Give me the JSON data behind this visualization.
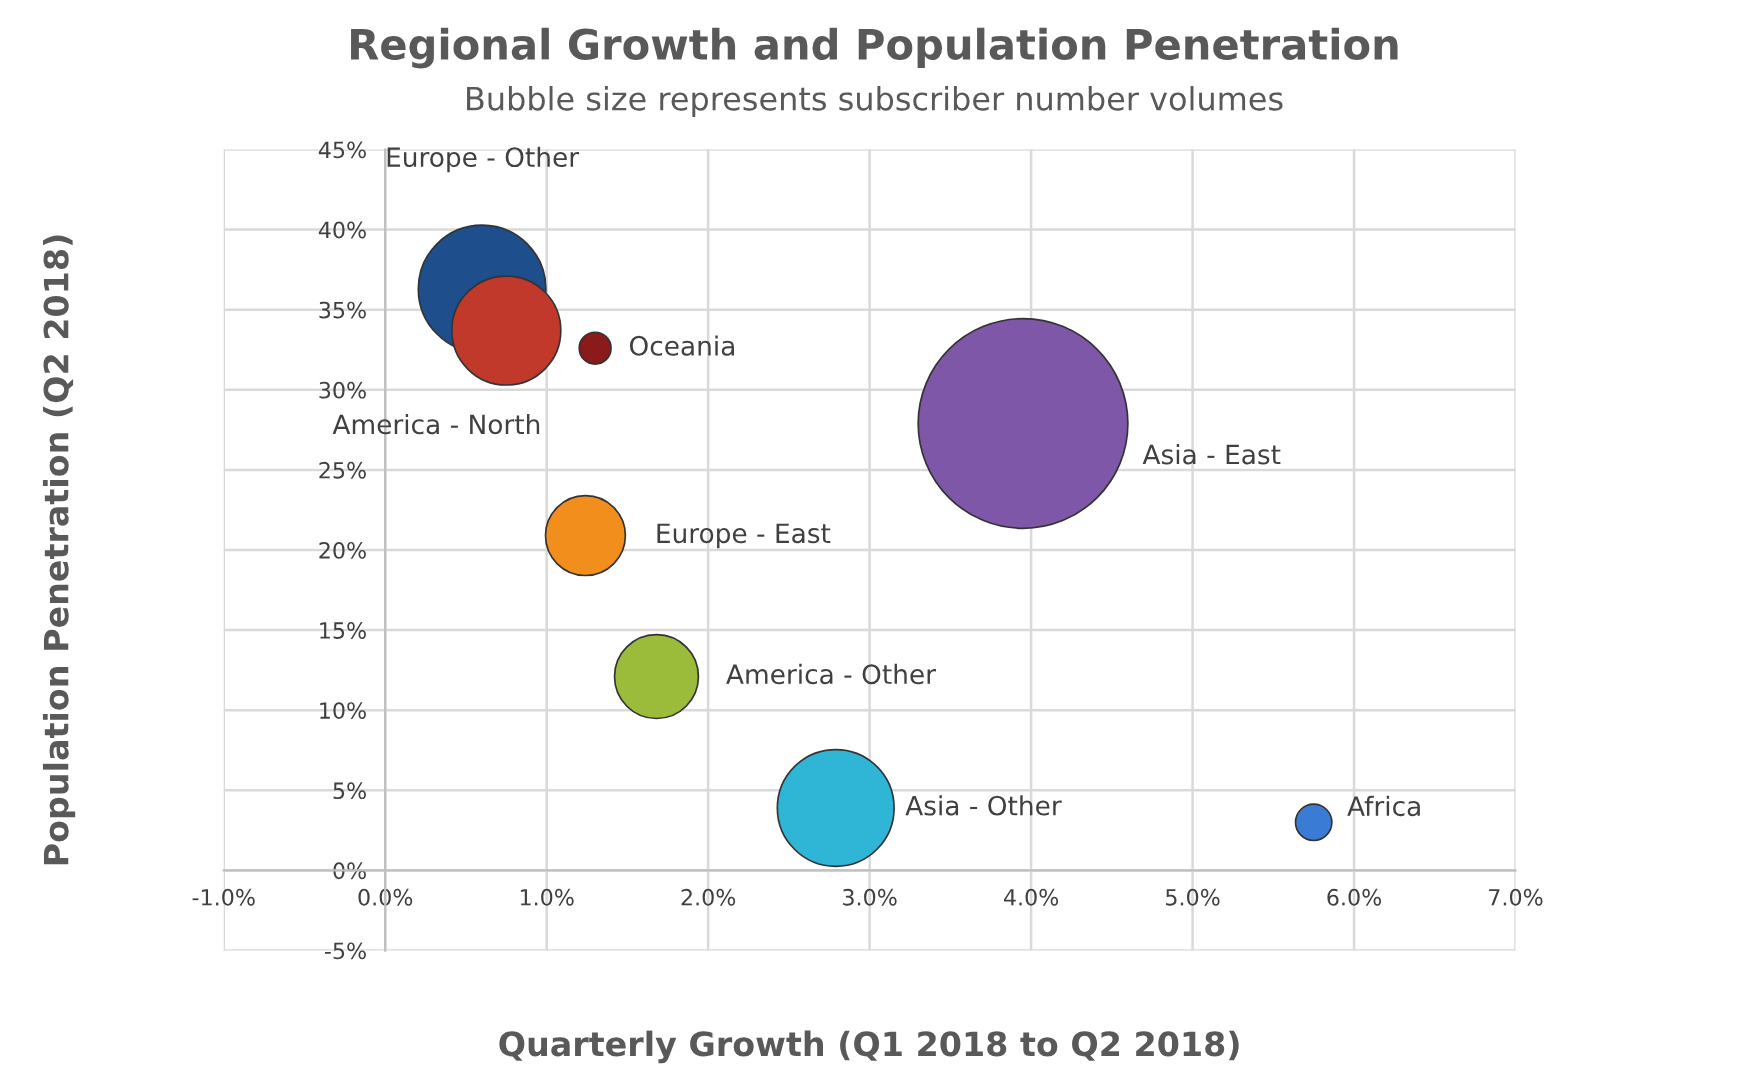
{
  "chart_data": {
    "type": "bubble",
    "title": "Regional Growth and Population Penetration",
    "subtitle": "Bubble size represents subscriber number volumes",
    "xlabel": "Quarterly Growth (Q1 2018 to Q2 2018)",
    "ylabel": "Population Penetration (Q2 2018)",
    "series": [
      {
        "name": "Europe - Other",
        "color": "#1f4e8c",
        "x": [
          0.6
        ],
        "values": [
          36.3
        ],
        "sizes": [
          0.37
        ]
      },
      {
        "name": "America - North",
        "color": "#c0392b",
        "x": [
          0.75
        ],
        "values": [
          33.7
        ],
        "sizes": [
          0.27
        ]
      },
      {
        "name": "Oceania",
        "color": "#8b1a1a",
        "x": [
          1.3
        ],
        "values": [
          32.6
        ],
        "sizes": [
          0.023
        ]
      },
      {
        "name": "Asia - East",
        "color": "#7e57a8",
        "x": [
          3.95
        ],
        "values": [
          27.9
        ],
        "sizes": [
          1
        ]
      },
      {
        "name": "Europe - East",
        "color": "#f28e1c",
        "x": [
          1.24
        ],
        "values": [
          20.9
        ],
        "sizes": [
          0.145
        ]
      },
      {
        "name": "America - Other",
        "color": "#9bbb3b",
        "x": [
          1.68
        ],
        "values": [
          12.1
        ],
        "sizes": [
          0.16
        ]
      },
      {
        "name": "Asia - Other",
        "color": "#2fb5d6",
        "x": [
          2.79
        ],
        "values": [
          3.9
        ],
        "sizes": [
          0.31
        ]
      },
      {
        "name": "Africa",
        "color": "#3a7bd5",
        "x": [
          5.75
        ],
        "values": [
          3.0
        ],
        "sizes": [
          0.03
        ]
      }
    ],
    "xlim": [
      -1,
      7
    ],
    "xticks": [
      {
        "value": -1,
        "label": "-1.0%"
      },
      {
        "value": 0,
        "label": "0.0%"
      },
      {
        "value": 1,
        "label": "1.0%"
      },
      {
        "value": 2,
        "label": "2.0%"
      },
      {
        "value": 3,
        "label": "3.0%"
      },
      {
        "value": 4,
        "label": "4.0%"
      },
      {
        "value": 5,
        "label": "5.0%"
      },
      {
        "value": 6,
        "label": "6.0%"
      },
      {
        "value": 7,
        "label": "7.0%"
      }
    ],
    "ylim": [
      -5,
      45
    ],
    "yticks": [
      {
        "value": -5,
        "label": "-5%"
      },
      {
        "value": 0,
        "label": "0%"
      },
      {
        "value": 5,
        "label": "5%"
      },
      {
        "value": 10,
        "label": "10%"
      },
      {
        "value": 15,
        "label": "15%"
      },
      {
        "value": 20,
        "label": "20%"
      },
      {
        "value": 25,
        "label": "25%"
      },
      {
        "value": 30,
        "label": "30%"
      },
      {
        "value": 35,
        "label": "35%"
      },
      {
        "value": 40,
        "label": "40%"
      },
      {
        "value": 45,
        "label": "45%"
      }
    ],
    "grid": true,
    "legend": false
  }
}
